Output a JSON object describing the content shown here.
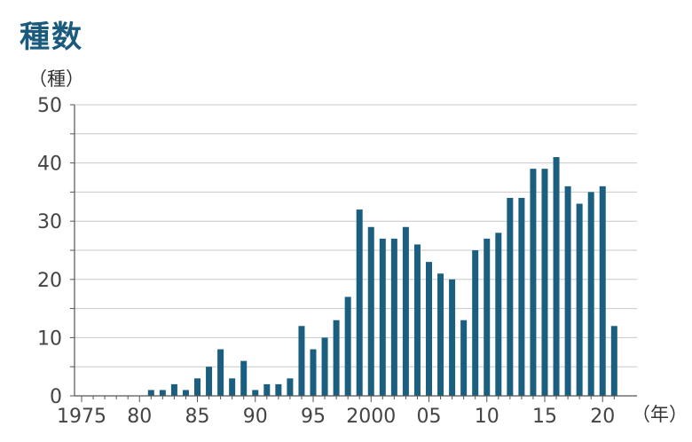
{
  "title": "種数",
  "chart_data": {
    "type": "bar",
    "title": "種数",
    "ylabel": "（種）",
    "xlabel": "（年）",
    "ylim": [
      0,
      50
    ],
    "y_ticks": [
      0,
      10,
      20,
      30,
      40,
      50
    ],
    "x_tick_labels": [
      {
        "year": 1975,
        "label": "1975"
      },
      {
        "year": 1980,
        "label": "80"
      },
      {
        "year": 1985,
        "label": "85"
      },
      {
        "year": 1990,
        "label": "90"
      },
      {
        "year": 1995,
        "label": "95"
      },
      {
        "year": 2000,
        "label": "2000"
      },
      {
        "year": 2005,
        "label": "05"
      },
      {
        "year": 2010,
        "label": "10"
      },
      {
        "year": 2015,
        "label": "15"
      },
      {
        "year": 2020,
        "label": "20"
      }
    ],
    "categories": [
      1975,
      1976,
      1977,
      1978,
      1979,
      1980,
      1981,
      1982,
      1983,
      1984,
      1985,
      1986,
      1987,
      1988,
      1989,
      1990,
      1991,
      1992,
      1993,
      1994,
      1995,
      1996,
      1997,
      1998,
      1999,
      2000,
      2001,
      2002,
      2003,
      2004,
      2005,
      2006,
      2007,
      2008,
      2009,
      2010,
      2011,
      2012,
      2013,
      2014,
      2015,
      2016,
      2017,
      2018,
      2019,
      2020,
      2021
    ],
    "values": [
      0,
      0,
      0,
      0,
      0,
      0,
      1,
      1,
      2,
      1,
      3,
      5,
      8,
      3,
      6,
      1,
      2,
      2,
      3,
      12,
      8,
      10,
      13,
      17,
      32,
      29,
      27,
      27,
      29,
      26,
      23,
      21,
      20,
      13,
      25,
      27,
      28,
      34,
      34,
      39,
      39,
      41,
      36,
      33,
      35,
      36,
      12
    ],
    "bar_color": "#1b5f80",
    "grid": true
  }
}
